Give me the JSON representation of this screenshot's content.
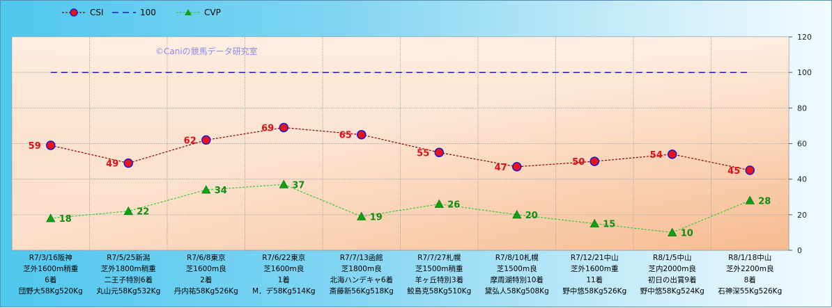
{
  "chart_data": {
    "type": "line",
    "categories": [
      [
        "R7/3/16阪神",
        "芝外1600m稍重",
        "6着",
        "団野大58Kg520Kg"
      ],
      [
        "R7/5/25新潟",
        "芝外1800m稍重",
        "二王子特別6着",
        "丸山元58Kg532Kg"
      ],
      [
        "R7/6/8東京",
        "芝1600m良",
        "2着",
        "丹内祐58Kg526Kg"
      ],
      [
        "R7/6/22東京",
        "芝1600m良",
        "1着",
        "M．デ58Kg514Kg"
      ],
      [
        "R7/7/13函館",
        "芝1800m良",
        "北海ハンデキャ6着",
        "斎藤新56Kg518Kg"
      ],
      [
        "R7/7/27札幌",
        "芝1500m稍重",
        "羊ヶ丘特別3着",
        "鮫島克58Kg510Kg"
      ],
      [
        "R7/8/10札幌",
        "芝1500m良",
        "摩周湖特別10着",
        "黛弘人58Kg508Kg"
      ],
      [
        "R7/12/21中山",
        "芝外1600m重",
        "11着",
        "野中悠58Kg526Kg"
      ],
      [
        "R8/1/5中山",
        "芝内2000m良",
        "初日の出賞9着",
        "野中悠58Kg524Kg"
      ],
      [
        "R8/1/18中山",
        "芝外2200m良",
        "8着",
        "石神深55Kg526Kg"
      ]
    ],
    "series": [
      {
        "name": "CSI",
        "values": [
          59,
          49,
          62,
          69,
          65,
          55,
          47,
          50,
          54,
          45
        ],
        "color": "#8b0000",
        "marker_color": "#e8141c",
        "marker": "circle"
      },
      {
        "name": "100",
        "values": [
          100,
          100,
          100,
          100,
          100,
          100,
          100,
          100,
          100,
          100
        ],
        "color": "#1a1acc",
        "marker": "none"
      },
      {
        "name": "CVP",
        "values": [
          18,
          22,
          34,
          37,
          19,
          26,
          20,
          15,
          10,
          28
        ],
        "color": "#33cc33",
        "marker_color": "#11a011",
        "marker": "triangle"
      }
    ],
    "yticks": [
      "0",
      "20",
      "40",
      "60",
      "80",
      "100",
      "120"
    ],
    "ylim": [
      0,
      120
    ],
    "grid": true,
    "legend_position": "top-left",
    "watermark": "©Caniの競馬データ研究室"
  }
}
